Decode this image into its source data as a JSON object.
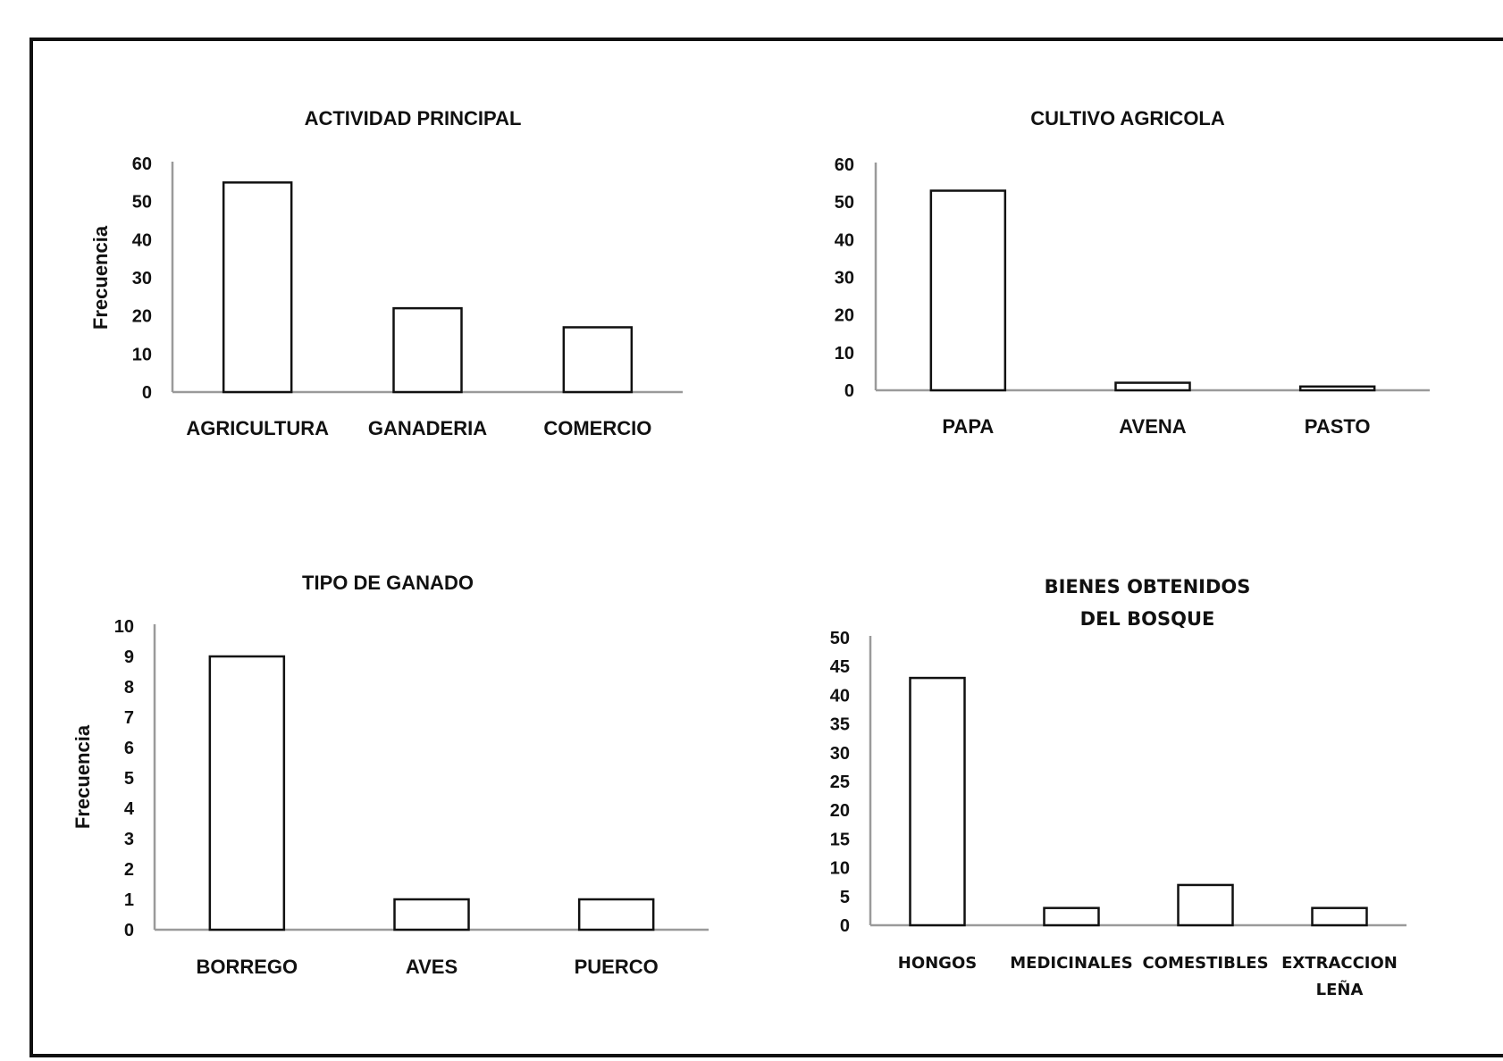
{
  "chart_data": [
    {
      "type": "bar",
      "title": [
        "ACTIVIDAD PRINCIPAL"
      ],
      "ylabel": "Frecuencia",
      "xlabel": "",
      "categories": [
        [
          "AGRICULTURA"
        ],
        [
          "GANADERIA"
        ],
        [
          "COMERCIO"
        ]
      ],
      "values": [
        55,
        22,
        17
      ],
      "ylim": [
        0,
        60
      ],
      "yticks": [
        0,
        10,
        20,
        30,
        40,
        50,
        60
      ],
      "grid": false,
      "legend": "none"
    },
    {
      "type": "bar",
      "title": [
        "CULTIVO AGRICOLA"
      ],
      "ylabel": "",
      "xlabel": "",
      "categories": [
        [
          "PAPA"
        ],
        [
          "AVENA"
        ],
        [
          "PASTO"
        ]
      ],
      "values": [
        53,
        2,
        1
      ],
      "ylim": [
        0,
        60
      ],
      "yticks": [
        0,
        10,
        20,
        30,
        40,
        50,
        60
      ],
      "grid": false,
      "legend": "none"
    },
    {
      "type": "bar",
      "title": [
        "TIPO DE GANADO"
      ],
      "ylabel": "Frecuencia",
      "xlabel": "",
      "categories": [
        [
          "BORREGO"
        ],
        [
          "AVES"
        ],
        [
          "PUERCO"
        ]
      ],
      "values": [
        9,
        1,
        1
      ],
      "ylim": [
        0,
        10
      ],
      "yticks": [
        0,
        1,
        2,
        3,
        4,
        5,
        6,
        7,
        8,
        9,
        10
      ],
      "grid": false,
      "legend": "none"
    },
    {
      "type": "bar",
      "title": [
        "BIENES OBTENIDOS",
        "DEL BOSQUE"
      ],
      "ylabel": "",
      "xlabel": "",
      "categories": [
        [
          "HONGOS"
        ],
        [
          "MEDICINALES"
        ],
        [
          "COMESTIBLES"
        ],
        [
          "EXTRACCION",
          "LEÑA"
        ]
      ],
      "values": [
        43,
        3,
        7,
        3
      ],
      "ylim": [
        0,
        50
      ],
      "yticks": [
        0,
        5,
        10,
        15,
        20,
        25,
        30,
        35,
        40,
        45,
        50
      ],
      "grid": false,
      "legend": "none"
    }
  ],
  "colors": {
    "bar_fill": "#ffffff",
    "bar_stroke": "#111111",
    "axis": "#9a9a9a",
    "frame": "#111111"
  }
}
